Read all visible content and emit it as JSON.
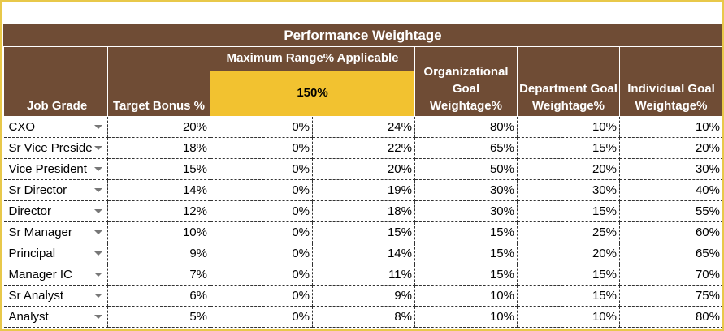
{
  "title": "Performance Weightage",
  "headers": {
    "job_grade": "Job Grade",
    "target_bonus": "Target Bonus %",
    "max_range": "Maximum Range% Applicable",
    "max_range_value": "150%",
    "org_goal": "Organizational Goal Weightage%",
    "dept_goal": "Department Goal Weightage%",
    "indiv_goal": "Individual Goal Weightage%"
  },
  "rows": [
    {
      "grade": "CXO",
      "target": "20%",
      "min": "0%",
      "max": "24%",
      "org": "80%",
      "dept": "10%",
      "indiv": "10%"
    },
    {
      "grade": "Sr Vice Preside",
      "target": "18%",
      "min": "0%",
      "max": "22%",
      "org": "65%",
      "dept": "15%",
      "indiv": "20%"
    },
    {
      "grade": "Vice President",
      "target": "15%",
      "min": "0%",
      "max": "20%",
      "org": "50%",
      "dept": "20%",
      "indiv": "30%"
    },
    {
      "grade": "Sr Director",
      "target": "14%",
      "min": "0%",
      "max": "19%",
      "org": "30%",
      "dept": "30%",
      "indiv": "40%"
    },
    {
      "grade": "Director",
      "target": "12%",
      "min": "0%",
      "max": "18%",
      "org": "30%",
      "dept": "15%",
      "indiv": "55%"
    },
    {
      "grade": "Sr Manager",
      "target": "10%",
      "min": "0%",
      "max": "15%",
      "org": "15%",
      "dept": "25%",
      "indiv": "60%"
    },
    {
      "grade": "Principal",
      "target": "9%",
      "min": "0%",
      "max": "14%",
      "org": "15%",
      "dept": "20%",
      "indiv": "65%"
    },
    {
      "grade": "Manager IC",
      "target": "7%",
      "min": "0%",
      "max": "11%",
      "org": "15%",
      "dept": "15%",
      "indiv": "70%"
    },
    {
      "grade": "Sr Analyst",
      "target": "6%",
      "min": "0%",
      "max": "9%",
      "org": "10%",
      "dept": "15%",
      "indiv": "75%"
    },
    {
      "grade": "Analyst",
      "target": "5%",
      "min": "0%",
      "max": "8%",
      "org": "10%",
      "dept": "10%",
      "indiv": "80%"
    }
  ],
  "colors": {
    "header_bg": "#6f4c35",
    "highlight": "#f2c230",
    "border_accent": "#e8c84a"
  },
  "icons": {
    "dropdown": "chevron-down-icon"
  }
}
